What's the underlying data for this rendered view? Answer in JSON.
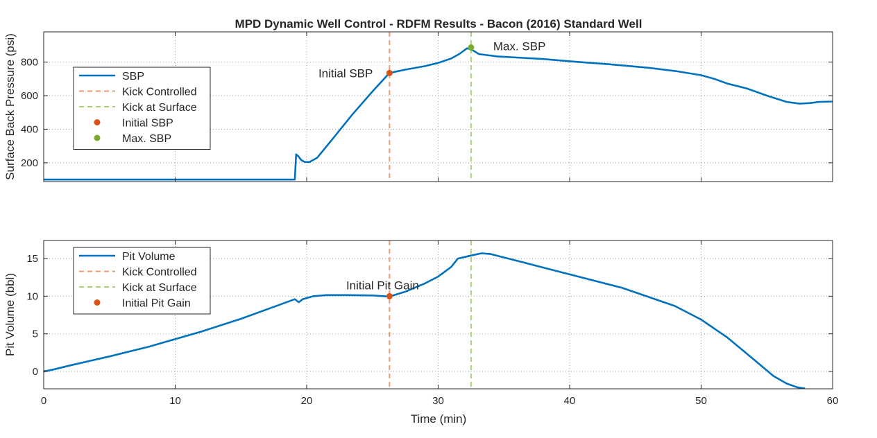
{
  "title": "MPD Dynamic Well Control - RDFM Results - Bacon (2016) Standard Well",
  "xlabel": "Time (min)",
  "colors": {
    "main": "#0072BD",
    "orange": "#D95319",
    "orange_dash": "#ED9A74",
    "green": "#77AC30",
    "green_dash": "#A8D37A",
    "axis": "#262626",
    "grid": "#9a9a9a"
  },
  "chart_data": [
    {
      "type": "line",
      "ylabel": "Surface Back Pressure (psi)",
      "xlim": [
        0,
        60
      ],
      "ylim": [
        88,
        980
      ],
      "x_ticks": [
        0,
        10,
        20,
        30,
        40,
        50,
        60
      ],
      "y_ticks": [
        200,
        400,
        600,
        800
      ],
      "grid": true,
      "legend_position": "top-left",
      "series": [
        {
          "name": "SBP",
          "x": [
            0,
            5,
            10,
            15,
            19.1,
            19.2,
            19.35,
            19.6,
            19.85,
            20.2,
            20.8,
            22,
            23.5,
            25,
            26.3,
            27.5,
            29,
            30,
            31,
            31.6,
            32.2,
            32.6,
            33.1,
            34.5,
            36,
            38,
            40,
            43,
            46,
            48,
            50,
            51,
            52,
            53.5,
            55,
            56.5,
            57.5,
            58.3,
            59,
            60
          ],
          "y": [
            100,
            100,
            100,
            100,
            100,
            250,
            240,
            215,
            205,
            204,
            230,
            345,
            490,
            625,
            735,
            755,
            776,
            795,
            822,
            848,
            882,
            872,
            848,
            834,
            827,
            818,
            805,
            787,
            766,
            747,
            722,
            700,
            672,
            642,
            600,
            563,
            552,
            556,
            563,
            565
          ]
        }
      ],
      "markers": [
        {
          "name": "Initial SBP",
          "x": 26.3,
          "y": 735,
          "color": "#D95319"
        },
        {
          "name": "Max. SBP",
          "x": 32.5,
          "y": 887,
          "color": "#77AC30"
        }
      ],
      "vlines": [
        {
          "name": "Kick Controlled",
          "x": 26.3
        },
        {
          "name": "Kick at Surface",
          "x": 32.5
        }
      ],
      "annotations": [
        "Initial SBP",
        "Max. SBP"
      ],
      "legend": [
        "SBP",
        "Kick Controlled",
        "Kick at Surface",
        "Initial SBP",
        "Max. SBP"
      ]
    },
    {
      "type": "line",
      "ylabel": "Pit Volume (bbl)",
      "xlim": [
        0,
        60
      ],
      "ylim": [
        -2.3,
        17.4
      ],
      "x_ticks": [
        0,
        10,
        20,
        30,
        40,
        50,
        60
      ],
      "y_ticks": [
        0,
        5,
        10,
        15
      ],
      "grid": true,
      "legend_position": "top-left",
      "series": [
        {
          "name": "Pit Volume",
          "x": [
            0,
            0.6,
            2,
            5,
            8,
            10,
            12,
            15,
            18,
            19.1,
            19.4,
            19.7,
            20.5,
            21.5,
            23,
            25,
            26.3,
            27.5,
            29,
            30,
            31,
            31.5,
            32.5,
            33.3,
            34,
            36,
            38,
            40,
            44,
            48,
            50,
            52,
            54,
            55.5,
            56.5,
            57.3,
            57.9
          ],
          "y": [
            0,
            0.2,
            0.8,
            2.0,
            3.3,
            4.3,
            5.3,
            7.0,
            8.9,
            9.6,
            9.2,
            9.6,
            10.0,
            10.15,
            10.15,
            10.1,
            9.95,
            10.6,
            11.7,
            12.6,
            13.9,
            15.0,
            15.4,
            15.7,
            15.6,
            14.7,
            13.8,
            12.9,
            11.1,
            8.7,
            6.9,
            4.5,
            1.6,
            -0.6,
            -1.6,
            -2.1,
            -2.25
          ]
        }
      ],
      "markers": [
        {
          "name": "Initial Pit Gain",
          "x": 26.3,
          "y": 10.0,
          "color": "#D95319"
        }
      ],
      "vlines": [
        {
          "name": "Kick Controlled",
          "x": 26.3
        },
        {
          "name": "Kick at Surface",
          "x": 32.5
        }
      ],
      "annotations": [
        "Initial Pit Gain"
      ],
      "legend": [
        "Pit Volume",
        "Kick Controlled",
        "Kick at Surface",
        "Initial Pit Gain"
      ]
    }
  ]
}
